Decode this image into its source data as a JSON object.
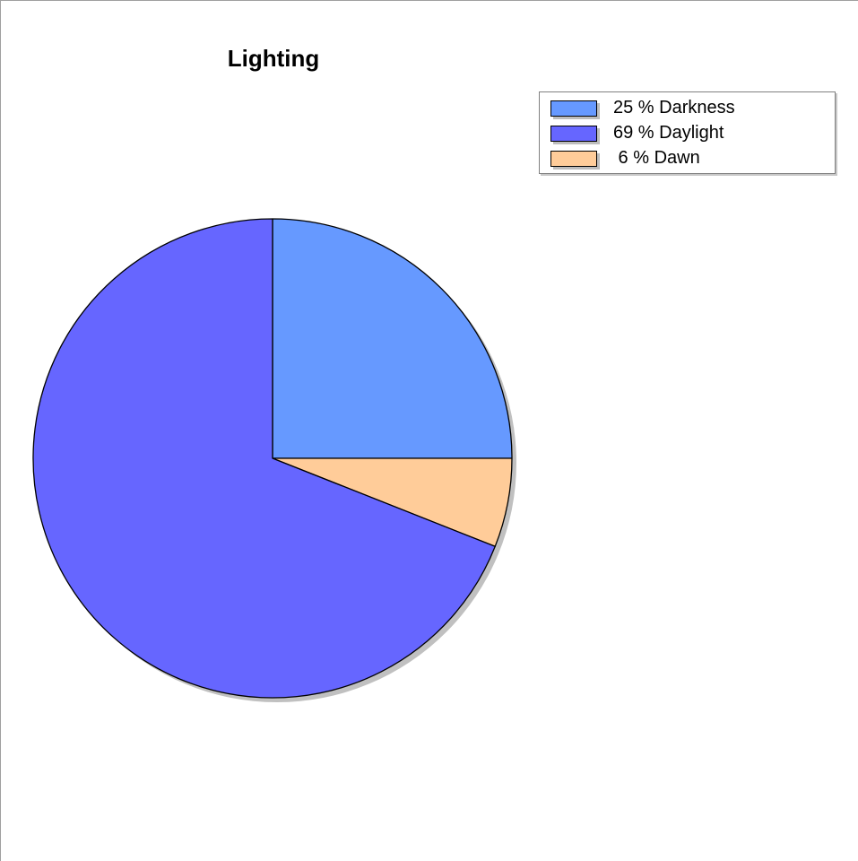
{
  "chart_data": {
    "type": "pie",
    "title": "Lighting",
    "slices": [
      {
        "name": "Darkness",
        "value": 25,
        "label": "25 % Darkness",
        "color": "#6699ff"
      },
      {
        "name": "Daylight",
        "value": 69,
        "label": "69 % Daylight",
        "color": "#6666ff"
      },
      {
        "name": "Dawn",
        "value": 6,
        "label": " 6 % Dawn",
        "color": "#ffcc99"
      }
    ],
    "legend_placement": "top-right",
    "start_angle": "12 o'clock",
    "slice_order_drawn": [
      "Darkness",
      "Dawn",
      "Daylight"
    ]
  }
}
